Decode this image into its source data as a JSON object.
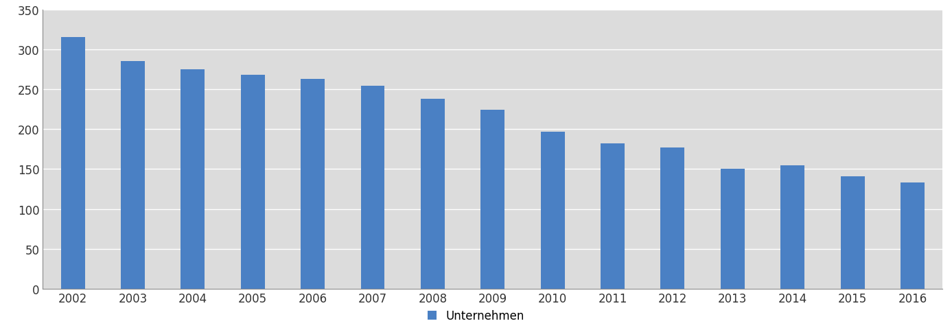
{
  "chart_data": {
    "type": "bar",
    "categories": [
      "2002",
      "2003",
      "2004",
      "2005",
      "2006",
      "2007",
      "2008",
      "2009",
      "2010",
      "2011",
      "2012",
      "2013",
      "2014",
      "2015",
      "2016"
    ],
    "series": [
      {
        "name": "Unternehmen",
        "color": "#4a80c4",
        "values": [
          315,
          285,
          275,
          268,
          263,
          254,
          238,
          224,
          197,
          182,
          177,
          150,
          155,
          141,
          133
        ]
      }
    ],
    "ylim": [
      0,
      350
    ],
    "yticks": [
      0,
      50,
      100,
      150,
      200,
      250,
      300,
      350
    ],
    "grid": true,
    "legend": "lower center"
  }
}
